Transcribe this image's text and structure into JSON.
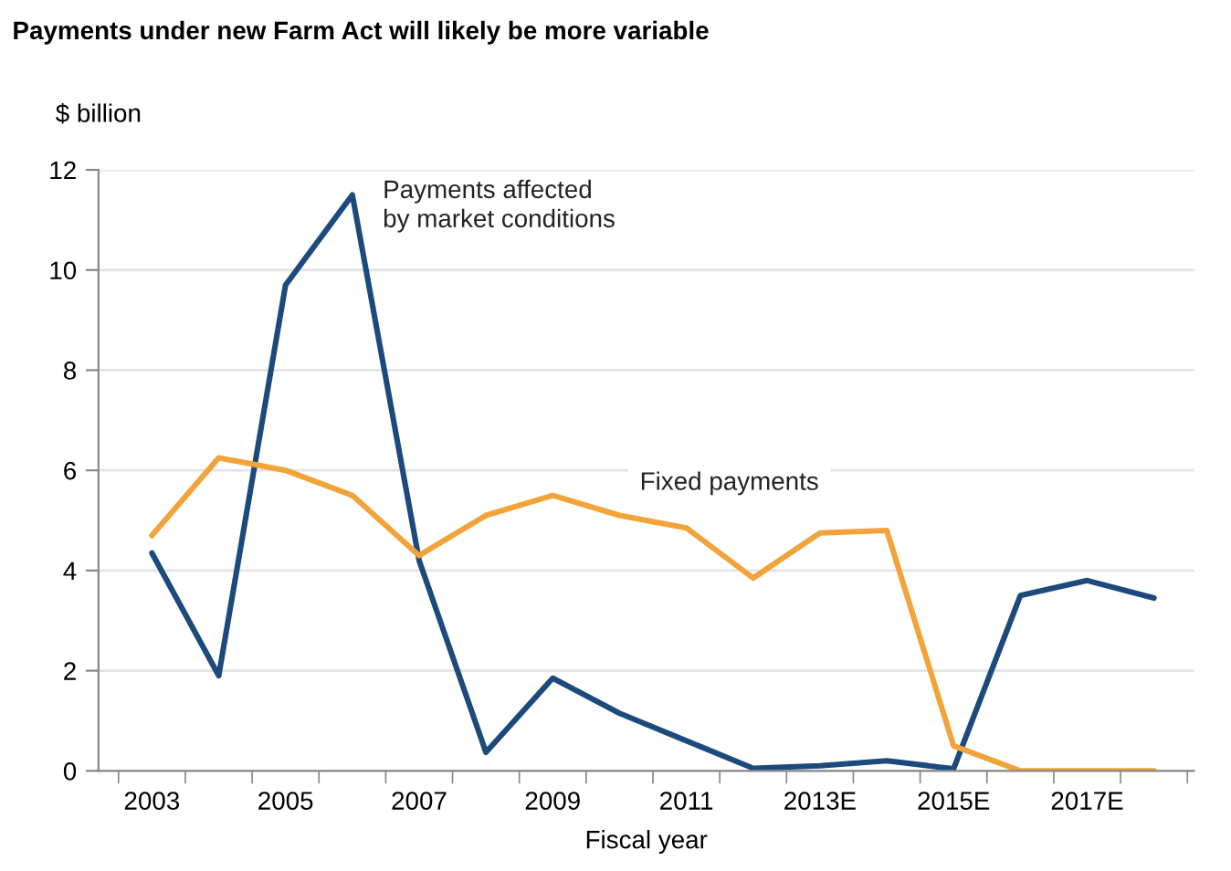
{
  "chart_data": {
    "type": "line",
    "title": "Payments under new Farm Act will likely be more variable",
    "ylabel": "$ billion",
    "xlabel": "Fiscal year",
    "categories": [
      "2003",
      null,
      "2005",
      null,
      "2007",
      null,
      "2009",
      null,
      "2011",
      null,
      "2013E",
      null,
      "2015E",
      null,
      "2017E",
      null
    ],
    "series": [
      {
        "name": "Payments affected\nby market conditions",
        "color": "#1c4a7d",
        "values": [
          4.35,
          1.9,
          9.7,
          11.5,
          4.2,
          0.37,
          1.85,
          1.15,
          0.6,
          0.05,
          0.1,
          0.2,
          0.04,
          3.5,
          3.8,
          3.45
        ]
      },
      {
        "name": "Fixed payments",
        "color": "#f2a33a",
        "values": [
          4.7,
          6.25,
          6.0,
          5.5,
          4.3,
          5.1,
          5.5,
          5.1,
          4.85,
          3.85,
          4.75,
          4.8,
          0.5,
          0.0,
          0.0,
          0.0
        ]
      }
    ],
    "ylim": [
      0,
      12
    ],
    "yticks": [
      0,
      2,
      4,
      6,
      8,
      10,
      12
    ],
    "grid": "y"
  }
}
